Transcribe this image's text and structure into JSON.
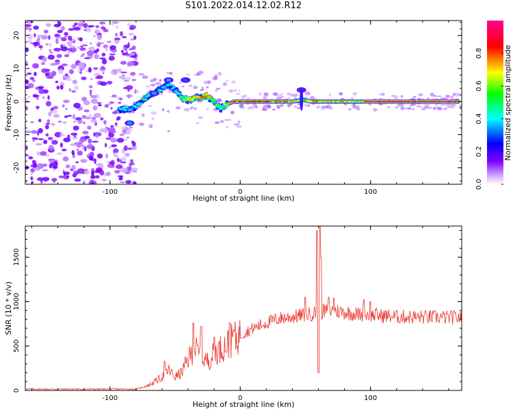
{
  "page_title": "S101.2022.014.12.02.R12",
  "chart_data": [
    {
      "type": "heatmap",
      "title": "",
      "xlabel": "Height of straight line (km)",
      "ylabel": "Frequency (Hz)",
      "xlim": [
        -165,
        170
      ],
      "ylim": [
        -25,
        24.5
      ],
      "x_ticks": [
        -100,
        0,
        100
      ],
      "y_ticks": [
        -20,
        -10,
        0,
        10,
        20
      ],
      "colorbar": {
        "label": "Normalized spectral amplitude",
        "range": [
          0,
          1
        ],
        "ticks": [
          0.0,
          0.2,
          0.4,
          0.6,
          0.8
        ],
        "colors": [
          "#ffffff",
          "#8000ff",
          "#0000ff",
          "#00ffff",
          "#00ff00",
          "#ffff00",
          "#ff0000",
          "#ff0080"
        ]
      },
      "ridge": [
        [
          -93,
          -2.5,
          0.35
        ],
        [
          -82,
          -2,
          0.4
        ],
        [
          -76,
          0,
          0.45
        ],
        [
          -70,
          2,
          0.45
        ],
        [
          -62,
          3.5,
          0.4
        ],
        [
          -55,
          5,
          0.4
        ],
        [
          -48,
          3,
          0.4
        ],
        [
          -44,
          0.8,
          0.55
        ],
        [
          -38,
          0.5,
          0.65
        ],
        [
          -32,
          1.2,
          0.7
        ],
        [
          -26,
          1.8,
          0.7
        ],
        [
          -20,
          0,
          0.6
        ],
        [
          -15,
          -2,
          0.5
        ],
        [
          -10,
          -0.8,
          0.6
        ],
        [
          -5,
          0,
          0.8
        ],
        [
          10,
          0,
          0.95
        ],
        [
          25,
          0,
          0.75
        ],
        [
          40,
          0,
          0.8
        ],
        [
          48,
          0.5,
          0.55
        ],
        [
          55,
          0,
          0.8
        ],
        [
          65,
          0,
          0.7
        ],
        [
          80,
          0,
          0.75
        ],
        [
          90,
          0,
          0.6
        ],
        [
          100,
          0,
          0.9
        ],
        [
          120,
          0,
          0.92
        ],
        [
          140,
          0,
          0.9
        ],
        [
          155,
          0,
          0.92
        ],
        [
          168,
          0,
          0.9
        ]
      ],
      "side_lobes": [
        [
          -85,
          -6.5,
          0.35
        ],
        [
          -42,
          6.5,
          0.3
        ],
        [
          -55,
          6.5,
          0.35
        ],
        [
          47,
          3.5,
          0.3
        ],
        [
          -66,
          2.5,
          0.35
        ]
      ]
    },
    {
      "type": "line",
      "title": "",
      "xlabel": "Height of straight line (km)",
      "ylabel": "SNR (10 * v/v)",
      "xlim": [
        -165,
        170
      ],
      "ylim": [
        0,
        1850
      ],
      "x_ticks": [
        -100,
        0,
        100
      ],
      "y_ticks": [
        0,
        500,
        1000,
        1500
      ],
      "series": [
        {
          "name": "SNR",
          "color": "#e8312a",
          "profile": [
            [
              -165,
              15
            ],
            [
              -80,
              15
            ],
            [
              -70,
              60
            ],
            [
              -60,
              150
            ],
            [
              -55,
              230
            ],
            [
              -50,
              150
            ],
            [
              -45,
              200
            ],
            [
              -40,
              350
            ],
            [
              -35,
              480
            ],
            [
              -30,
              380
            ],
            [
              -25,
              330
            ],
            [
              -20,
              420
            ],
            [
              -10,
              520
            ],
            [
              0,
              620
            ],
            [
              10,
              700
            ],
            [
              20,
              760
            ],
            [
              30,
              810
            ],
            [
              40,
              830
            ],
            [
              50,
              850
            ],
            [
              60,
              880
            ],
            [
              70,
              900
            ],
            [
              80,
              880
            ],
            [
              90,
              860
            ],
            [
              100,
              850
            ],
            [
              120,
              830
            ],
            [
              140,
              825
            ],
            [
              170,
              820
            ]
          ],
          "spikes": [
            [
              -58,
              330
            ],
            [
              -36,
              760
            ],
            [
              -30,
              720
            ],
            [
              -20,
              600
            ],
            [
              -8,
              760
            ],
            [
              -5,
              680
            ],
            [
              50,
              1050
            ],
            [
              59,
              1800
            ],
            [
              60,
              200
            ],
            [
              61,
              1850
            ],
            [
              62,
              1500
            ],
            [
              68,
              1050
            ],
            [
              72,
              1040
            ],
            [
              95,
              1020
            ],
            [
              100,
              1000
            ]
          ]
        }
      ]
    }
  ]
}
